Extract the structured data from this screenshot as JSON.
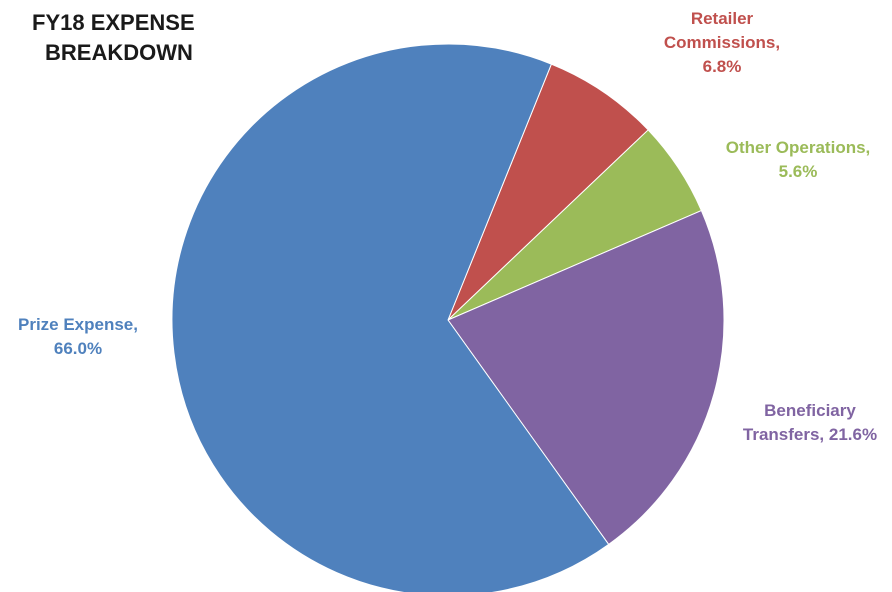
{
  "chart_data": {
    "type": "pie",
    "title_lines": [
      "FY18 EXPENSE",
      "BREAKDOWN"
    ],
    "slices": [
      {
        "name": "Prize Expense",
        "value": 66.0,
        "color": "#4f81bd",
        "label_lines": [
          "Prize Expense,",
          "66.0%"
        ]
      },
      {
        "name": "Retailer Commissions",
        "value": 6.8,
        "color": "#c0504d",
        "label_lines": [
          "Retailer",
          "Commissions,",
          "6.8%"
        ]
      },
      {
        "name": "Other Operations",
        "value": 5.6,
        "color": "#9bbb59",
        "label_lines": [
          "Other Operations,",
          "5.6%"
        ]
      },
      {
        "name": "Beneficiary Transfers",
        "value": 21.6,
        "color": "#8064a2",
        "label_lines": [
          "Beneficiary",
          "Transfers, 21.6%"
        ]
      }
    ],
    "label_colors": {
      "Prize Expense": "#4f81bd",
      "Retailer Commissions": "#c0504d",
      "Other Operations": "#9bbb59",
      "Beneficiary Transfers": "#8064a2"
    },
    "legend": "none"
  }
}
